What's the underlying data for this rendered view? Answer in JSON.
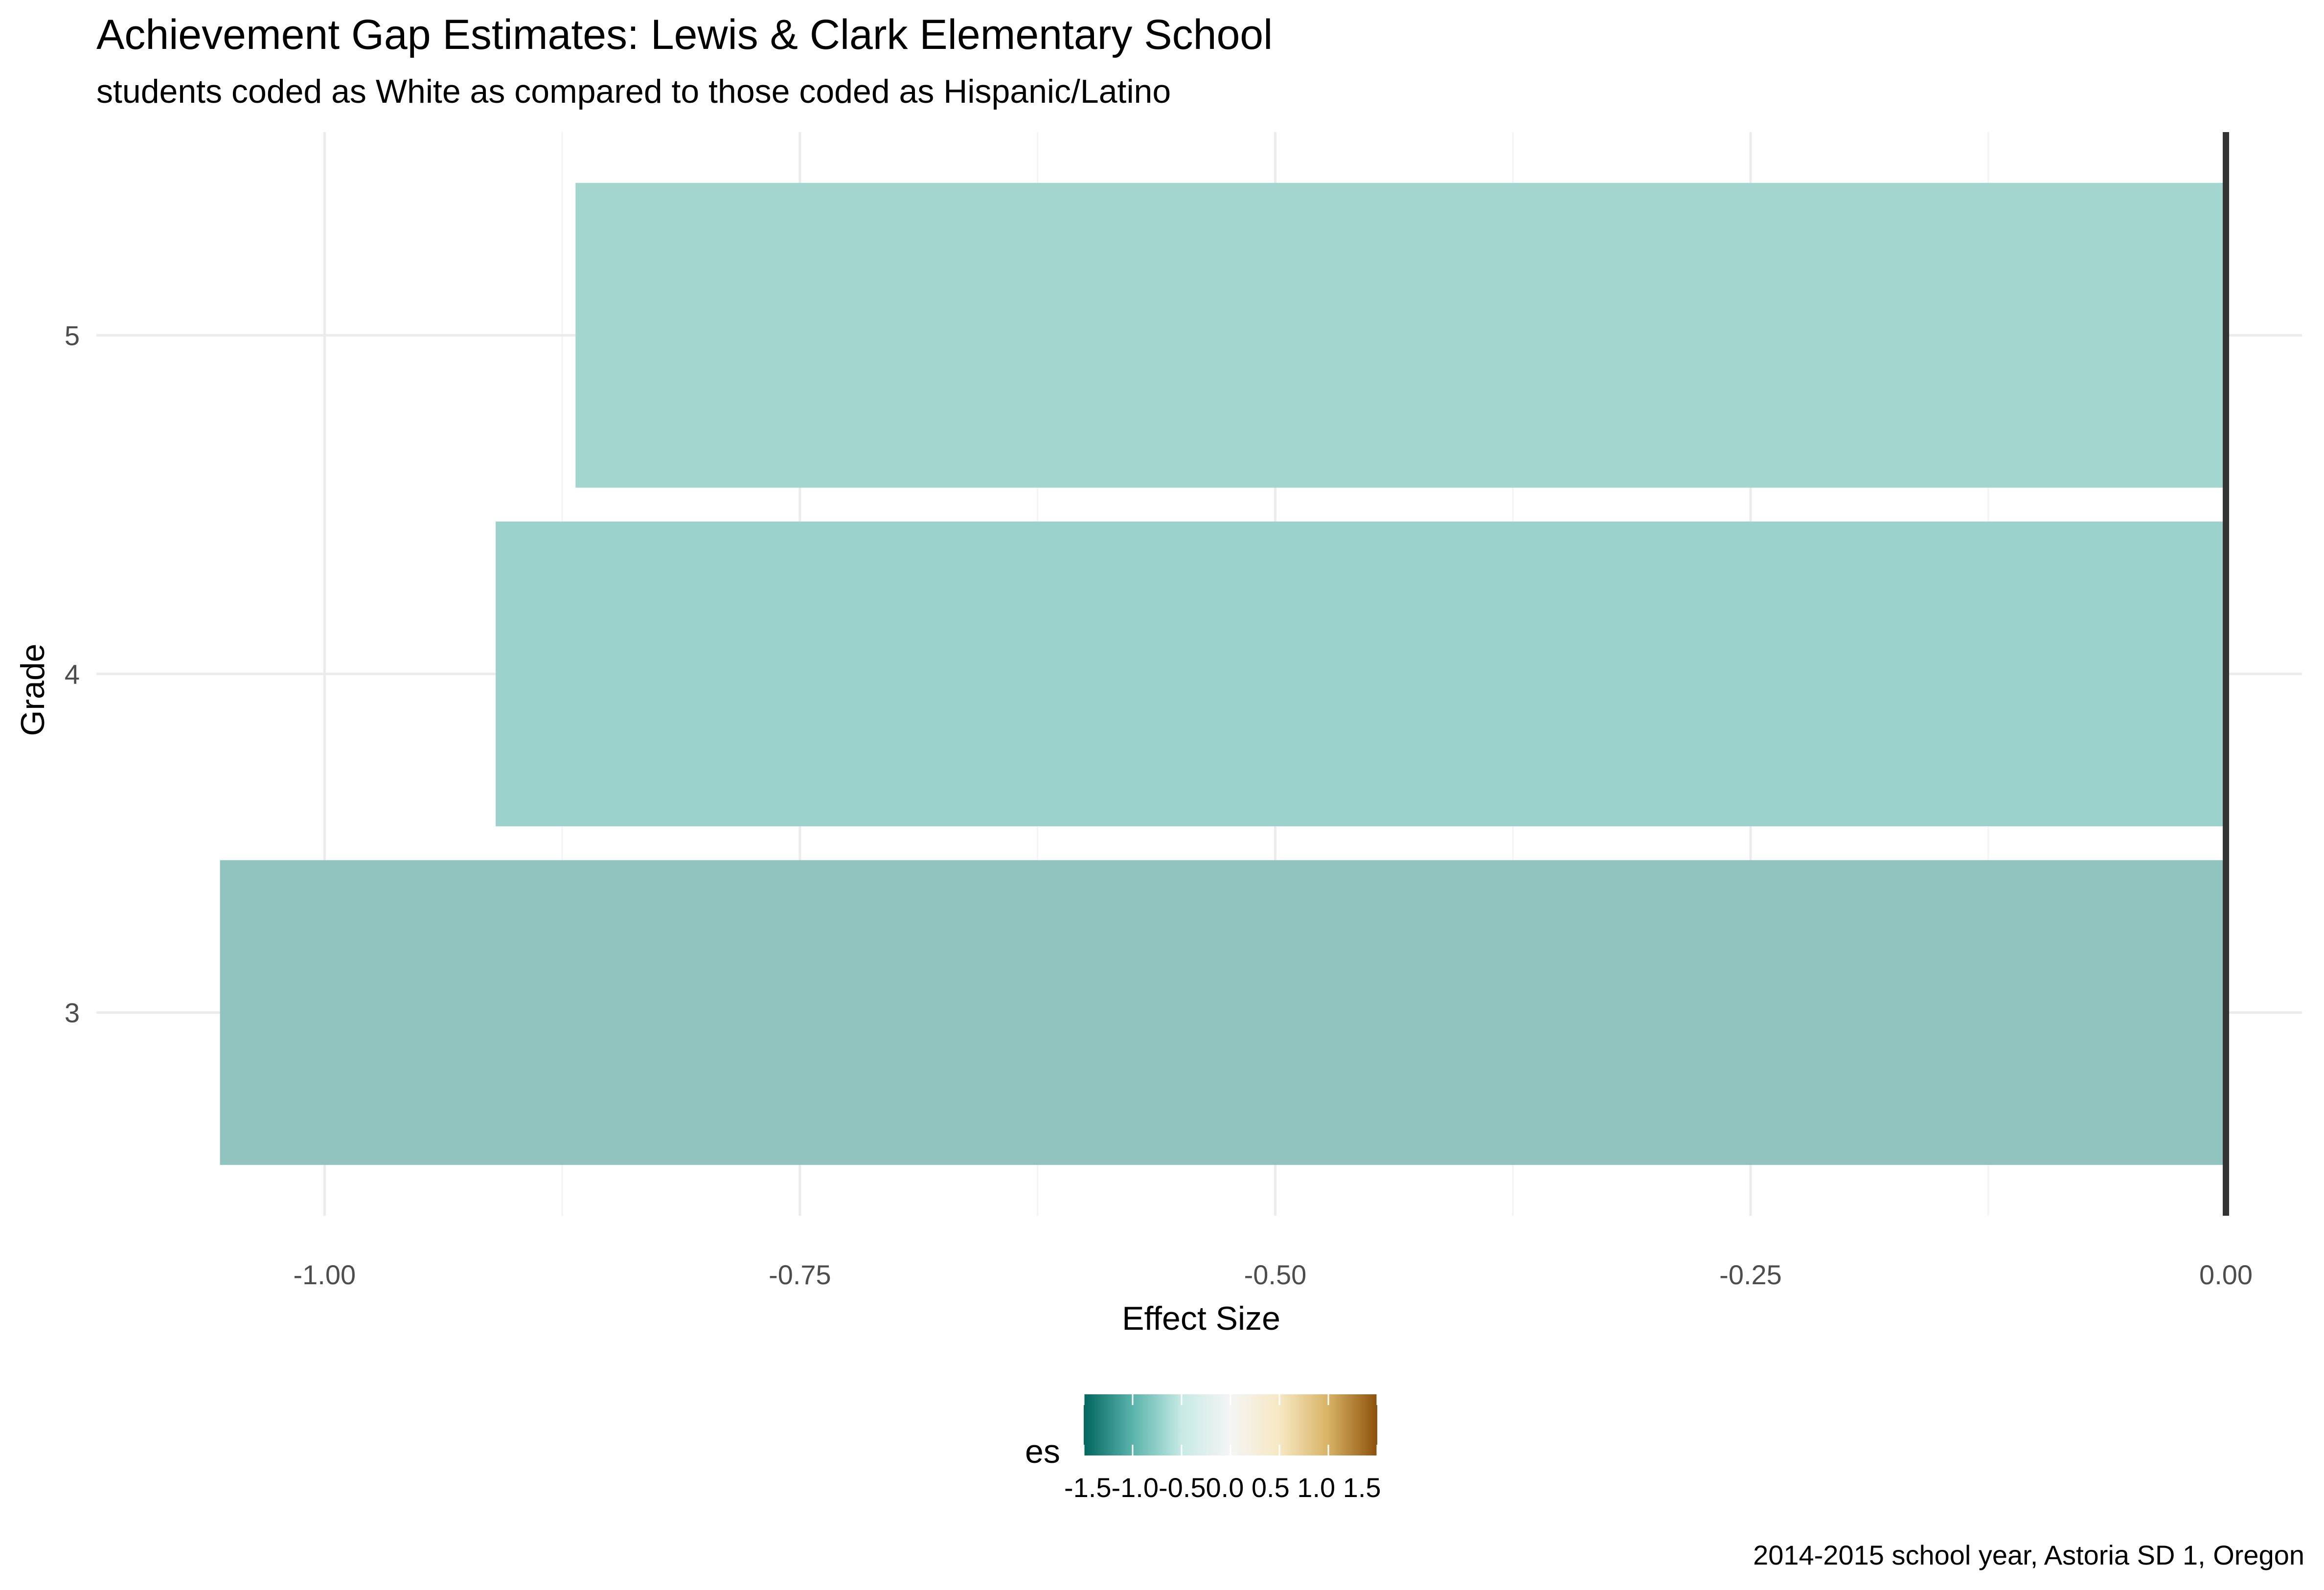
{
  "chart_data": {
    "type": "bar",
    "orientation": "horizontal",
    "title": "Achievement Gap Estimates: Lewis & Clark Elementary School",
    "subtitle": "students coded as White as compared to those coded as Hispanic/Latino",
    "caption": "2014-2015 school year, Astoria SD 1, Oregon",
    "xlabel": "Effect Size",
    "ylabel": "Grade",
    "categories": [
      "3",
      "4",
      "5"
    ],
    "values": [
      -1.055,
      -0.91,
      -0.868
    ],
    "xlim": [
      -1.12,
      0.04
    ],
    "x_ticks": [
      -1.0,
      -0.75,
      -0.5,
      -0.25,
      0.0
    ],
    "x_tick_labels": [
      "-1.00",
      "-0.75",
      "-0.50",
      "-0.25",
      "0.00"
    ],
    "reference_line": 0.0,
    "grid": true,
    "colors": {
      "bar_grade_3": "#92c4bf",
      "bar_grade_4": "#9bd2cb",
      "bar_grade_5": "#a2d6cf",
      "reference_line": "#333333",
      "grid": "#ebebeb"
    },
    "legend": {
      "title": "es",
      "position": "bottom",
      "type": "colorbar",
      "limits": [
        -1.5,
        1.5
      ],
      "tick_labels": [
        "-1.5",
        "-1.0",
        "-0.5",
        "0.0",
        "0.5",
        "1.0",
        "1.5"
      ],
      "tick_values": [
        -1.5,
        -1.0,
        -0.5,
        0.0,
        0.5,
        1.0,
        1.5
      ],
      "tick_text": "-1.5-1.0-0.50.0 0.5 1.0 1.5",
      "gradient_colors": [
        "#01665e",
        "#5ab4ac",
        "#c7eae5",
        "#f5f5f5",
        "#f6e8c3",
        "#d8b365",
        "#8c510a"
      ]
    }
  }
}
